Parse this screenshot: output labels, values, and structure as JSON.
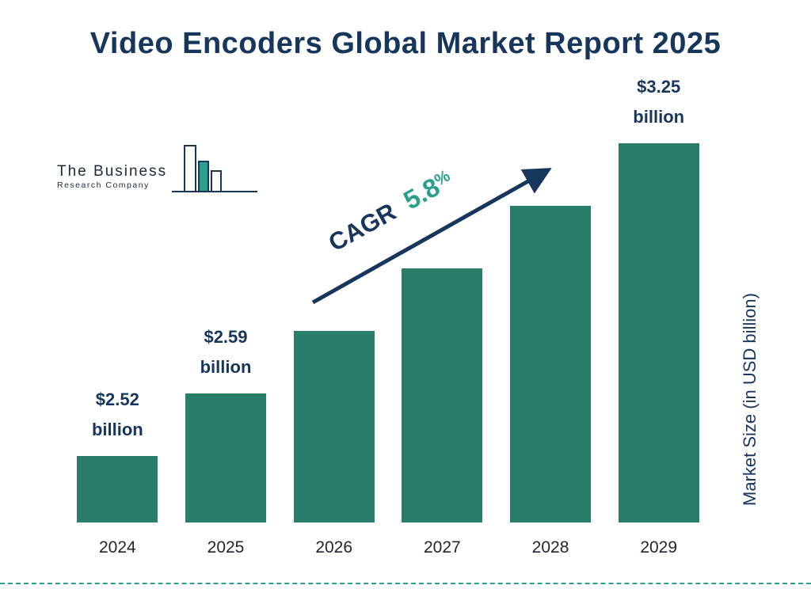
{
  "title": "Video Encoders Global Market Report 2025",
  "logo": {
    "line1": "The Business",
    "line2": "Research Company"
  },
  "cagr": {
    "label": "CAGR",
    "value": "5.8",
    "percent": "%"
  },
  "ylabel": "Market Size (in USD billion)",
  "colors": {
    "bar": "#2b7d6b",
    "navy": "#16365c",
    "teal_accent": "#2aa08c"
  },
  "chart_data": {
    "type": "bar",
    "title": "Video Encoders Global Market Report 2025",
    "ylabel": "Market Size (in USD billion)",
    "cagr": "5.8%",
    "categories": [
      "2024",
      "2025",
      "2026",
      "2027",
      "2028",
      "2029"
    ],
    "values": [
      2.52,
      2.59,
      2.74,
      2.9,
      3.07,
      3.25
    ],
    "value_labels": [
      {
        "line1": "$2.52",
        "line2": "billion"
      },
      {
        "line1": "$2.59",
        "line2": "billion"
      },
      null,
      null,
      null,
      {
        "line1": "$3.25",
        "line2": "billion"
      }
    ],
    "legend": false,
    "grid": false
  }
}
